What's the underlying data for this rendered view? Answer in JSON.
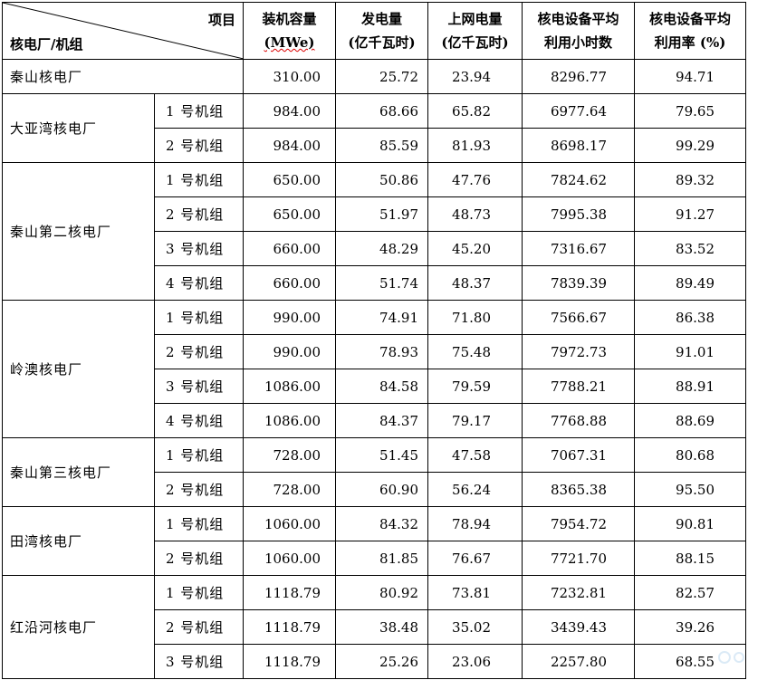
{
  "header": {
    "corner_top": "项目",
    "corner_bottom": "核电厂/机组",
    "col1_line1": "装机容量",
    "col1_line2": "(MWe)",
    "col2_line1": "发电量",
    "col2_line2": "(亿千瓦时)",
    "col3_line1": "上网电量",
    "col3_line2": "(亿千瓦时)",
    "col4_line1": "核电设备平均",
    "col4_line2": "利用小时数",
    "col5_line1": "核电设备平均",
    "col5_line2": "利用率 (%)"
  },
  "rows": [
    {
      "plant": "秦山核电厂",
      "unit": "",
      "cap": "310.00",
      "gen": "25.72",
      "grid": "23.94",
      "hours": "8296.77",
      "rate": "94.71"
    },
    {
      "plant": "大亚湾核电厂",
      "unit": "1 号机组",
      "cap": "984.00",
      "gen": "68.66",
      "grid": "65.82",
      "hours": "6977.64",
      "rate": "79.65"
    },
    {
      "plant": "",
      "unit": "2 号机组",
      "cap": "984.00",
      "gen": "85.59",
      "grid": "81.93",
      "hours": "8698.17",
      "rate": "99.29"
    },
    {
      "plant": "秦山第二核电厂",
      "unit": "1 号机组",
      "cap": "650.00",
      "gen": "50.86",
      "grid": "47.76",
      "hours": "7824.62",
      "rate": "89.32"
    },
    {
      "plant": "",
      "unit": "2 号机组",
      "cap": "650.00",
      "gen": "51.97",
      "grid": "48.73",
      "hours": "7995.38",
      "rate": "91.27"
    },
    {
      "plant": "",
      "unit": "3 号机组",
      "cap": "660.00",
      "gen": "48.29",
      "grid": "45.20",
      "hours": "7316.67",
      "rate": "83.52"
    },
    {
      "plant": "",
      "unit": "4 号机组",
      "cap": "660.00",
      "gen": "51.74",
      "grid": "48.37",
      "hours": "7839.39",
      "rate": "89.49"
    },
    {
      "plant": "岭澳核电厂",
      "unit": "1 号机组",
      "cap": "990.00",
      "gen": "74.91",
      "grid": "71.80",
      "hours": "7566.67",
      "rate": "86.38"
    },
    {
      "plant": "",
      "unit": "2 号机组",
      "cap": "990.00",
      "gen": "78.93",
      "grid": "75.48",
      "hours": "7972.73",
      "rate": "91.01"
    },
    {
      "plant": "",
      "unit": "3 号机组",
      "cap": "1086.00",
      "gen": "84.58",
      "grid": "79.59",
      "hours": "7788.21",
      "rate": "88.91"
    },
    {
      "plant": "",
      "unit": "4 号机组",
      "cap": "1086.00",
      "gen": "84.37",
      "grid": "79.17",
      "hours": "7768.88",
      "rate": "88.69"
    },
    {
      "plant": "秦山第三核电厂",
      "unit": "1 号机组",
      "cap": "728.00",
      "gen": "51.45",
      "grid": "47.58",
      "hours": "7067.31",
      "rate": "80.68"
    },
    {
      "plant": "",
      "unit": "2 号机组",
      "cap": "728.00",
      "gen": "60.90",
      "grid": "56.24",
      "hours": "8365.38",
      "rate": "95.50"
    },
    {
      "plant": "田湾核电厂",
      "unit": "1 号机组",
      "cap": "1060.00",
      "gen": "84.32",
      "grid": "78.94",
      "hours": "7954.72",
      "rate": "90.81"
    },
    {
      "plant": "",
      "unit": "2 号机组",
      "cap": "1060.00",
      "gen": "81.85",
      "grid": "76.67",
      "hours": "7721.70",
      "rate": "88.15"
    },
    {
      "plant": "红沿河核电厂",
      "unit": "1 号机组",
      "cap": "1118.79",
      "gen": "80.92",
      "grid": "73.81",
      "hours": "7232.81",
      "rate": "82.57"
    },
    {
      "plant": "",
      "unit": "2 号机组",
      "cap": "1118.79",
      "gen": "38.48",
      "grid": "35.02",
      "hours": "3439.43",
      "rate": "39.26"
    },
    {
      "plant": "",
      "unit": "3 号机组",
      "cap": "1118.79",
      "gen": "25.26",
      "grid": "23.06",
      "hours": "2257.80",
      "rate": "68.55"
    }
  ],
  "colors": {
    "border": "#000000",
    "watermark": "#9ac4e8"
  }
}
